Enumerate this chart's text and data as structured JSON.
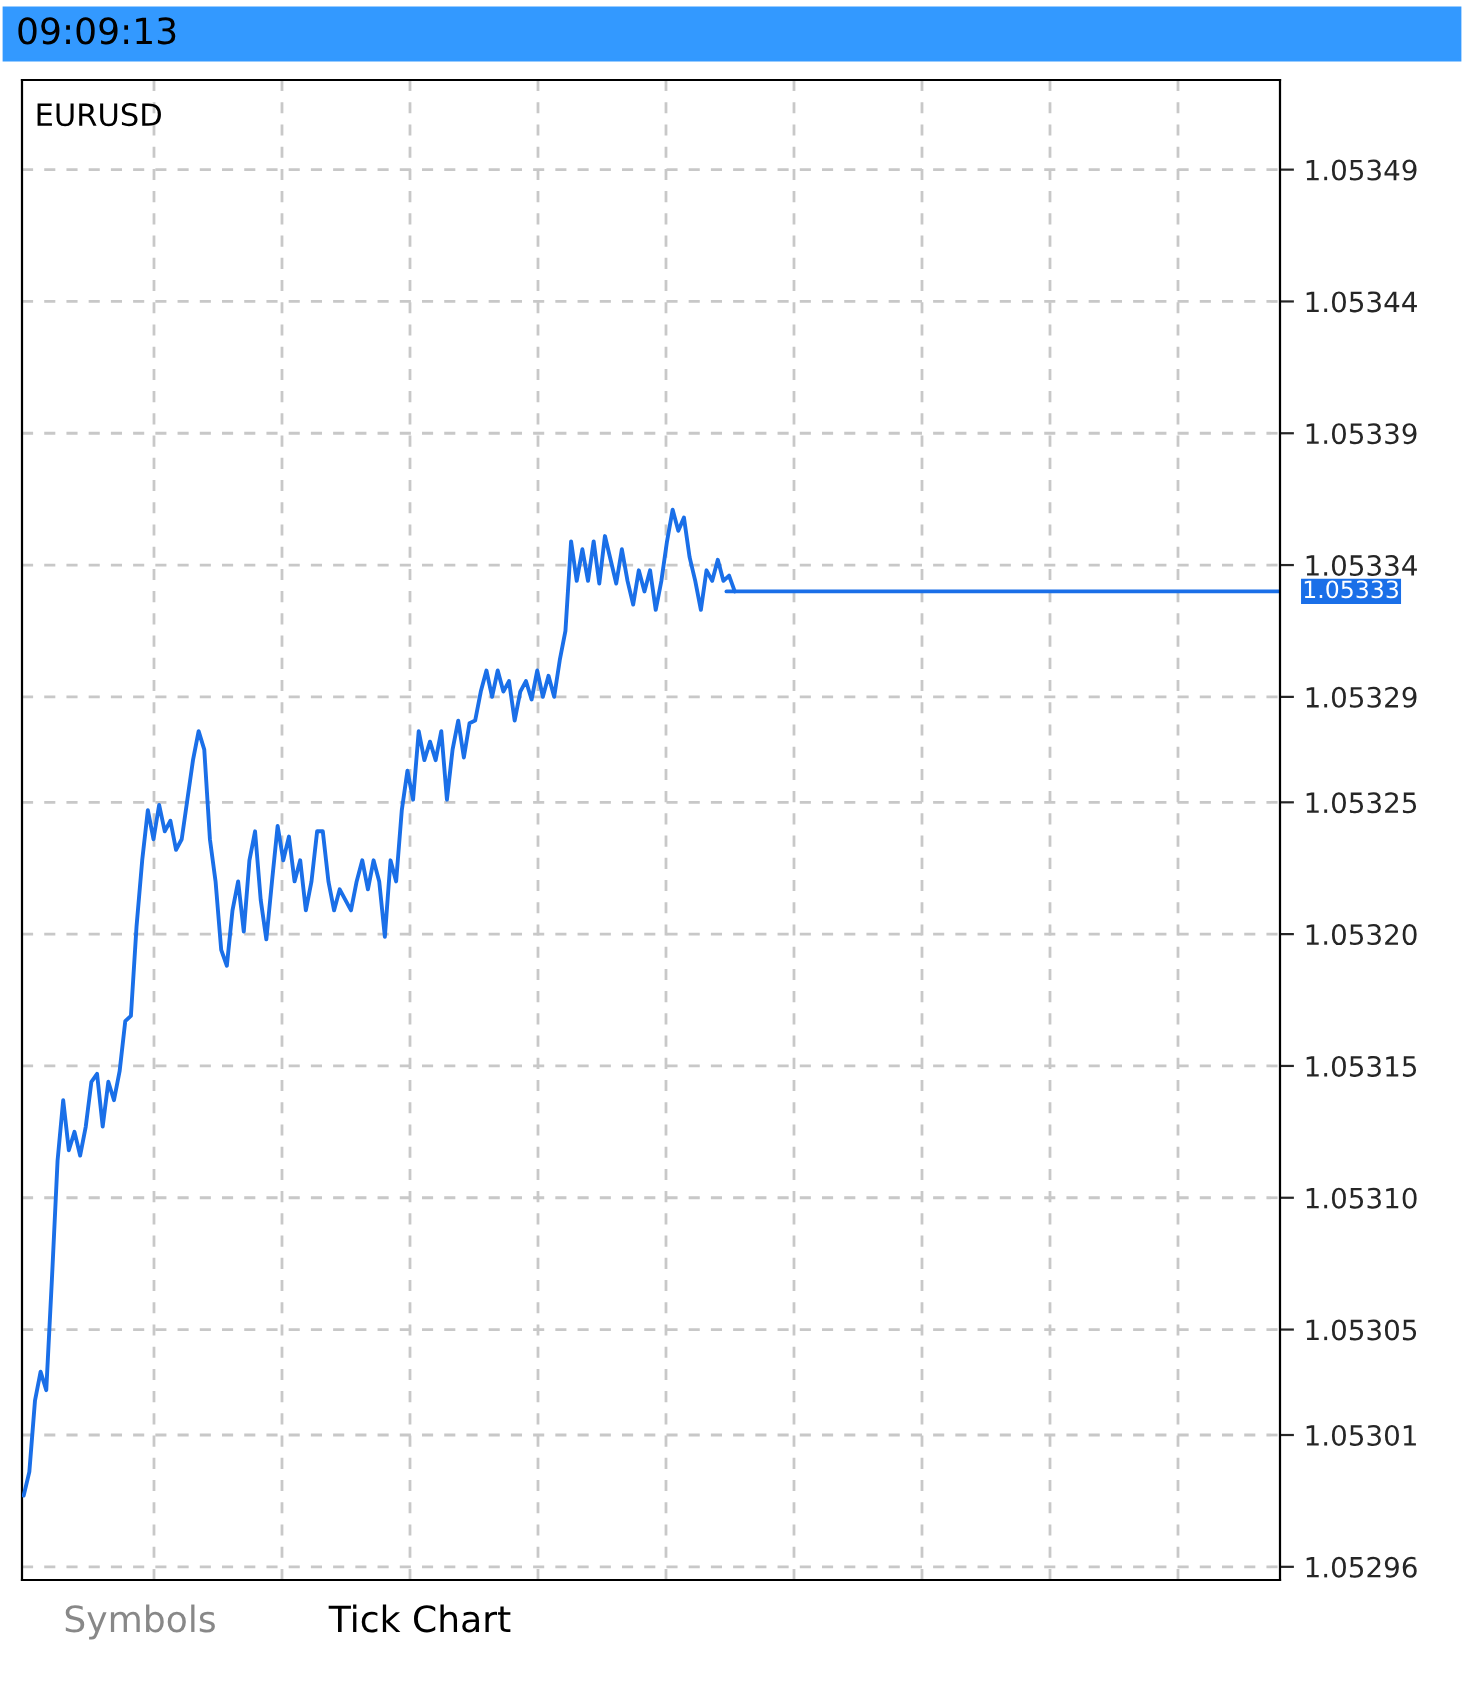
{
  "chart_data": {
    "type": "line",
    "title": "09:09:13",
    "annotations": [
      "EURUSD",
      "Symbols",
      "Tick Chart"
    ],
    "categories": [
      null,
      null,
      null,
      null,
      null,
      null,
      null,
      null,
      null,
      null,
      null,
      null,
      null,
      null,
      null,
      null,
      null,
      null,
      null,
      null,
      null,
      null,
      null,
      null,
      null,
      null,
      null,
      null,
      null,
      null,
      null,
      null,
      null,
      null,
      null,
      null,
      null,
      null,
      null,
      null,
      null,
      null,
      null,
      null,
      null,
      null,
      null,
      null,
      null,
      null,
      null,
      null,
      null,
      null,
      null,
      null,
      null,
      null,
      null,
      null,
      null,
      null,
      null,
      null,
      null,
      null,
      null,
      null,
      null,
      null,
      null,
      null,
      null,
      null,
      null,
      null,
      null,
      null,
      null,
      null,
      null,
      null,
      null,
      null,
      null,
      null,
      null,
      null,
      null,
      null,
      null,
      null,
      null,
      null,
      null,
      null,
      null,
      null,
      null,
      null,
      null,
      null,
      null,
      null,
      null,
      null,
      null,
      null,
      null,
      null,
      null,
      null,
      null,
      null,
      null,
      null,
      null,
      null,
      null,
      null,
      null,
      null,
      null,
      null,
      null,
      null,
      null
    ],
    "ylim": [
      1.052955,
      1.053524
    ],
    "yticks": [
      {
        "value": 1.05296,
        "label": "1.05296"
      },
      {
        "value": 1.05301,
        "label": "1.05301"
      },
      {
        "value": 1.05305,
        "label": "1.05305"
      },
      {
        "value": 1.0531,
        "label": "1.05310"
      },
      {
        "value": 1.05315,
        "label": "1.05315"
      },
      {
        "value": 1.0532,
        "label": "1.05320"
      },
      {
        "value": 1.05325,
        "label": "1.05325"
      },
      {
        "value": 1.05329,
        "label": "1.05329"
      },
      {
        "value": 1.05334,
        "label": "1.05334"
      },
      {
        "value": 1.05339,
        "label": "1.05339"
      },
      {
        "value": 1.05344,
        "label": "1.05344"
      },
      {
        "value": 1.05349,
        "label": "1.05349"
      }
    ],
    "tick_labels": "y",
    "grid": true,
    "line_style": "solid",
    "ref_lines": [
      {
        "axis": "y",
        "value": 1.05333,
        "label": "1.05333",
        "color": "#1a6fe8"
      }
    ],
    "series": [
      {
        "color": "#1a6fe8",
        "values": [
          1.052987,
          1.052996,
          1.053023,
          1.053034,
          1.053027,
          1.053069,
          1.053114,
          1.053137,
          1.053118,
          1.053125,
          1.053116,
          1.053127,
          1.053144,
          1.053147,
          1.053127,
          1.053144,
          1.053137,
          1.053148,
          1.053167,
          1.053169,
          1.053203,
          1.053228,
          1.053247,
          1.053236,
          1.053249,
          1.053239,
          1.053243,
          1.053232,
          1.053236,
          1.053251,
          1.053266,
          1.053277,
          1.05327,
          1.053236,
          1.05322,
          1.053194,
          1.053188,
          1.053209,
          1.05322,
          1.053201,
          1.053228,
          1.053239,
          1.053213,
          1.053198,
          1.05322,
          1.053241,
          1.053228,
          1.053237,
          1.05322,
          1.053228,
          1.053209,
          1.05322,
          1.053239,
          1.053239,
          1.05322,
          1.053209,
          1.053217,
          1.053213,
          1.053209,
          1.05322,
          1.053228,
          1.053217,
          1.053228,
          1.05322,
          1.053199,
          1.053228,
          1.05322,
          1.053247,
          1.053262,
          1.053251,
          1.053277,
          1.053266,
          1.053273,
          1.053266,
          1.053277,
          1.053251,
          1.05327,
          1.053281,
          1.053267,
          1.05328,
          1.053281,
          1.053292,
          1.0533,
          1.05329,
          1.0533,
          1.053292,
          1.053296,
          1.053281,
          1.053292,
          1.053296,
          1.053289,
          1.0533,
          1.05329,
          1.053298,
          1.05329,
          1.053304,
          1.053315,
          1.053349,
          1.053334,
          1.053346,
          1.053334,
          1.053349,
          1.053333,
          1.053351,
          1.053342,
          1.053333,
          1.053346,
          1.053334,
          1.053325,
          1.053338,
          1.05333,
          1.053338,
          1.053323,
          1.053334,
          1.053349,
          1.053361,
          1.053353,
          1.053358,
          1.053343,
          1.053334,
          1.053323,
          1.053338,
          1.053334,
          1.053342,
          1.053334,
          1.053336,
          1.05333
        ]
      }
    ]
  }
}
